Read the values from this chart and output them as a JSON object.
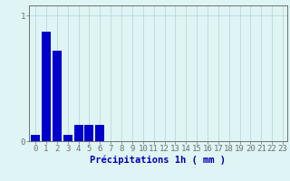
{
  "categories": [
    0,
    1,
    2,
    3,
    4,
    5,
    6,
    7,
    8,
    9,
    10,
    11,
    12,
    13,
    14,
    15,
    16,
    17,
    18,
    19,
    20,
    21,
    22,
    23
  ],
  "values": [
    0.05,
    0.87,
    0.72,
    0.05,
    0.13,
    0.13,
    0.13,
    0,
    0,
    0,
    0,
    0,
    0,
    0,
    0,
    0,
    0,
    0,
    0,
    0,
    0,
    0,
    0,
    0
  ],
  "bar_color": "#0000cc",
  "background_color": "#dff4f4",
  "grid_color": "#b8dada",
  "axis_color": "#707070",
  "text_color": "#0000bb",
  "xlabel": "Précipitations 1h ( mm )",
  "ylim": [
    0,
    1.08
  ],
  "xlim": [
    -0.6,
    23.4
  ],
  "yticks": [
    0,
    1
  ],
  "xticks": [
    0,
    1,
    2,
    3,
    4,
    5,
    6,
    7,
    8,
    9,
    10,
    11,
    12,
    13,
    14,
    15,
    16,
    17,
    18,
    19,
    20,
    21,
    22,
    23
  ],
  "bar_width": 0.85,
  "xlabel_fontsize": 7.5,
  "tick_fontsize": 6.5
}
